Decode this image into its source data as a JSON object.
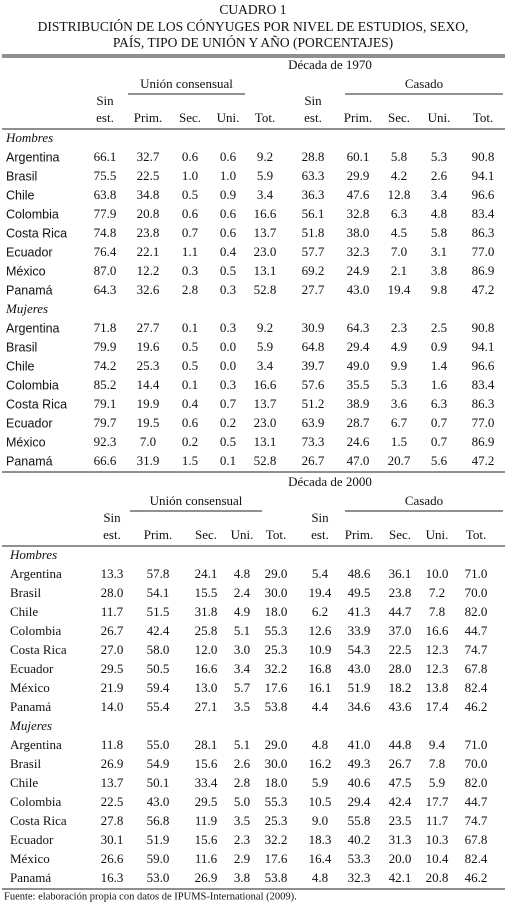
{
  "header": {
    "label": "CUADRO 1",
    "title_lines": [
      "DISTRIBUCIÓN DE LOS CÓNYUGES POR NIVEL DE ESTUDIOS, SEXO,",
      "PAÍS, TIPO DE UNIÓN Y AÑO (PORCENTAJES)"
    ]
  },
  "panels": [
    {
      "title": "Década de 1970",
      "groups": [
        "Unión consensual",
        "Casado"
      ],
      "columns": [
        [
          "Sin",
          "est."
        ],
        [
          "Prim."
        ],
        [
          "Sec."
        ],
        [
          "Uni."
        ],
        [
          "Tot."
        ],
        [
          "Sin",
          "est."
        ],
        [
          "Prim."
        ],
        [
          "Sec."
        ],
        [
          "Uni."
        ],
        [
          "Tot."
        ]
      ],
      "sections": [
        {
          "label": "Hombres",
          "rows": [
            [
              "Argentina",
              "66.1",
              "32.7",
              "0.6",
              "0.6",
              "9.2",
              "28.8",
              "60.1",
              "5.8",
              "5.3",
              "90.8"
            ],
            [
              "Brasil",
              "75.5",
              "22.5",
              "1.0",
              "1.0",
              "5.9",
              "63.3",
              "29.9",
              "4.2",
              "2.6",
              "94.1"
            ],
            [
              "Chile",
              "63.8",
              "34.8",
              "0.5",
              "0.9",
              "3.4",
              "36.3",
              "47.6",
              "12.8",
              "3.4",
              "96.6"
            ],
            [
              "Colombia",
              "77.9",
              "20.8",
              "0.6",
              "0.6",
              "16.6",
              "56.1",
              "32.8",
              "6.3",
              "4.8",
              "83.4"
            ],
            [
              "Costa Rica",
              "74.8",
              "23.8",
              "0.7",
              "0.6",
              "13.7",
              "51.8",
              "38.0",
              "4.5",
              "5.8",
              "86.3"
            ],
            [
              "Ecuador",
              "76.4",
              "22.1",
              "1.1",
              "0.4",
              "23.0",
              "57.7",
              "32.3",
              "7.0",
              "3.1",
              "77.0"
            ],
            [
              "México",
              "87.0",
              "12.2",
              "0.3",
              "0.5",
              "13.1",
              "69.2",
              "24.9",
              "2.1",
              "3.8",
              "86.9"
            ],
            [
              "Panamá",
              "64.3",
              "32.6",
              "2.8",
              "0.3",
              "52.8",
              "27.7",
              "43.0",
              "19.4",
              "9.8",
              "47.2"
            ]
          ]
        },
        {
          "label": "Mujeres",
          "rows": [
            [
              "Argentina",
              "71.8",
              "27.7",
              "0.1",
              "0.3",
              "9.2",
              "30.9",
              "64.3",
              "2.3",
              "2.5",
              "90.8"
            ],
            [
              "Brasil",
              "79.9",
              "19.6",
              "0.5",
              "0.0",
              "5.9",
              "64.8",
              "29.4",
              "4.9",
              "0.9",
              "94.1"
            ],
            [
              "Chile",
              "74.2",
              "25.3",
              "0.5",
              "0.0",
              "3.4",
              "39.7",
              "49.0",
              "9.9",
              "1.4",
              "96.6"
            ],
            [
              "Colombia",
              "85.2",
              "14.4",
              "0.1",
              "0.3",
              "16.6",
              "57.6",
              "35.5",
              "5.3",
              "1.6",
              "83.4"
            ],
            [
              "Costa Rica",
              "79.1",
              "19.9",
              "0.4",
              "0.7",
              "13.7",
              "51.2",
              "38.9",
              "3.6",
              "6.3",
              "86.3"
            ],
            [
              "Ecuador",
              "79.7",
              "19.5",
              "0.6",
              "0.2",
              "23.0",
              "63.9",
              "28.7",
              "6.7",
              "0.7",
              "77.0"
            ],
            [
              "México",
              "92.3",
              "7.0",
              "0.2",
              "0.5",
              "13.1",
              "73.3",
              "24.6",
              "1.5",
              "0.7",
              "86.9"
            ],
            [
              "Panamá",
              "66.6",
              "31.9",
              "1.5",
              "0.1",
              "52.8",
              "26.7",
              "47.0",
              "20.7",
              "5.6",
              "47.2"
            ]
          ]
        }
      ]
    },
    {
      "title": "Década de 2000",
      "groups": [
        "Unión consensual",
        "Casado"
      ],
      "columns": [
        [
          "Sin",
          "est."
        ],
        [
          "Prim."
        ],
        [
          "Sec."
        ],
        [
          "Uni."
        ],
        [
          "Tot."
        ],
        [
          "Sin",
          "est."
        ],
        [
          "Prim."
        ],
        [
          "Sec."
        ],
        [
          "Uni."
        ],
        [
          "Tot."
        ]
      ],
      "sections": [
        {
          "label": "Hombres",
          "rows": [
            [
              "Argentina",
              "13.3",
              "57.8",
              "24.1",
              "4.8",
              "29.0",
              "5.4",
              "48.6",
              "36.1",
              "10.0",
              "71.0"
            ],
            [
              "Brasil",
              "28.0",
              "54.1",
              "15.5",
              "2.4",
              "30.0",
              "19.4",
              "49.5",
              "23.8",
              "7.2",
              "70.0"
            ],
            [
              "Chile",
              "11.7",
              "51.5",
              "31.8",
              "4.9",
              "18.0",
              "6.2",
              "41.3",
              "44.7",
              "7.8",
              "82.0"
            ],
            [
              "Colombia",
              "26.7",
              "42.4",
              "25.8",
              "5.1",
              "55.3",
              "12.6",
              "33.9",
              "37.0",
              "16.6",
              "44.7"
            ],
            [
              "Costa Rica",
              "27.0",
              "58.0",
              "12.0",
              "3.0",
              "25.3",
              "10.9",
              "54.3",
              "22.5",
              "12.3",
              "74.7"
            ],
            [
              "Ecuador",
              "29.5",
              "50.5",
              "16.6",
              "3.4",
              "32.2",
              "16.8",
              "43.0",
              "28.0",
              "12.3",
              "67.8"
            ],
            [
              "México",
              "21.9",
              "59.4",
              "13.0",
              "5.7",
              "17.6",
              "16.1",
              "51.9",
              "18.2",
              "13.8",
              "82.4"
            ],
            [
              "Panamá",
              "14.0",
              "55.4",
              "27.1",
              "3.5",
              "53.8",
              "4.4",
              "34.6",
              "43.6",
              "17.4",
              "46.2"
            ]
          ]
        },
        {
          "label": "Mujeres",
          "rows": [
            [
              "Argentina",
              "11.8",
              "55.0",
              "28.1",
              "5.1",
              "29.0",
              "4.8",
              "41.0",
              "44.8",
              "9.4",
              "71.0"
            ],
            [
              "Brasil",
              "26.9",
              "54.9",
              "15.6",
              "2.6",
              "30.0",
              "16.2",
              "49.3",
              "26.7",
              "7.8",
              "70.0"
            ],
            [
              "Chile",
              "13.7",
              "50.1",
              "33.4",
              "2.8",
              "18.0",
              "5.9",
              "40.6",
              "47.5",
              "5.9",
              "82.0"
            ],
            [
              "Colombia",
              "22.5",
              "43.0",
              "29.5",
              "5.0",
              "55.3",
              "10.5",
              "29.4",
              "42.4",
              "17.7",
              "44.7"
            ],
            [
              "Costa Rica",
              "27.8",
              "56.8",
              "11.9",
              "3.5",
              "25.3",
              "9.0",
              "55.8",
              "23.5",
              "11.7",
              "74.7"
            ],
            [
              "Ecuador",
              "30.1",
              "51.9",
              "15.6",
              "2.3",
              "32.2",
              "18.3",
              "40.2",
              "31.3",
              "10.3",
              "67.8"
            ],
            [
              "México",
              "26.6",
              "59.0",
              "11.6",
              "2.9",
              "17.6",
              "16.4",
              "53.3",
              "20.0",
              "10.4",
              "82.4"
            ],
            [
              "Panamá",
              "16.3",
              "53.0",
              "26.9",
              "3.8",
              "53.8",
              "4.8",
              "32.3",
              "42.1",
              "20.8",
              "46.2"
            ]
          ]
        }
      ]
    }
  ],
  "footer": "Fuente: elaboración propia con datos de IPUMS-International (2009)."
}
